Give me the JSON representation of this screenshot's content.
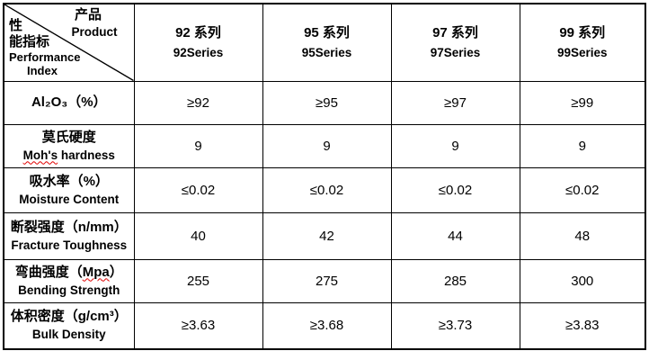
{
  "table": {
    "corner": {
      "product_cn": "产品",
      "product_en": "Product",
      "index_cn_line1": "性",
      "index_cn_line2": "能指标",
      "index_en_line1": "Performance",
      "index_en_line2": "Index"
    },
    "columns": [
      {
        "cn": "92 系列",
        "en": "92Series"
      },
      {
        "cn": "95 系列",
        "en": "95Series"
      },
      {
        "cn": "97 系列",
        "en": "97Series"
      },
      {
        "cn": "99 系列",
        "en": "99Series"
      }
    ],
    "rows": [
      {
        "label_cn": "Al₂O₃（%）",
        "label_en": "",
        "values": [
          "≥92",
          "≥95",
          "≥97",
          "≥99"
        ]
      },
      {
        "label_cn": "莫氏硬度",
        "label_en": "Moh's hardness",
        "wavy_en": "Moh's",
        "values": [
          "9",
          "9",
          "9",
          "9"
        ]
      },
      {
        "label_cn": "吸水率（%）",
        "label_en": "Moisture Content",
        "values": [
          "≤0.02",
          "≤0.02",
          "≤0.02",
          "≤0.02"
        ]
      },
      {
        "label_cn": "断裂强度（n/mm）",
        "label_en": "Fracture Toughness",
        "values": [
          "40",
          "42",
          "44",
          "48"
        ]
      },
      {
        "label_cn": "弯曲强度（Mpa）",
        "wavy_cn": "Mpa",
        "label_en": "Bending Strength",
        "values": [
          "255",
          "275",
          "285",
          "300"
        ]
      },
      {
        "label_cn": "体积密度（g/cm³）",
        "label_en": "Bulk Density",
        "values": [
          "≥3.63",
          "≥3.68",
          "≥3.73",
          "≥3.83"
        ]
      }
    ]
  },
  "colors": {
    "border": "#000000",
    "text": "#000000",
    "spellcheck_underline": "#e00000"
  }
}
